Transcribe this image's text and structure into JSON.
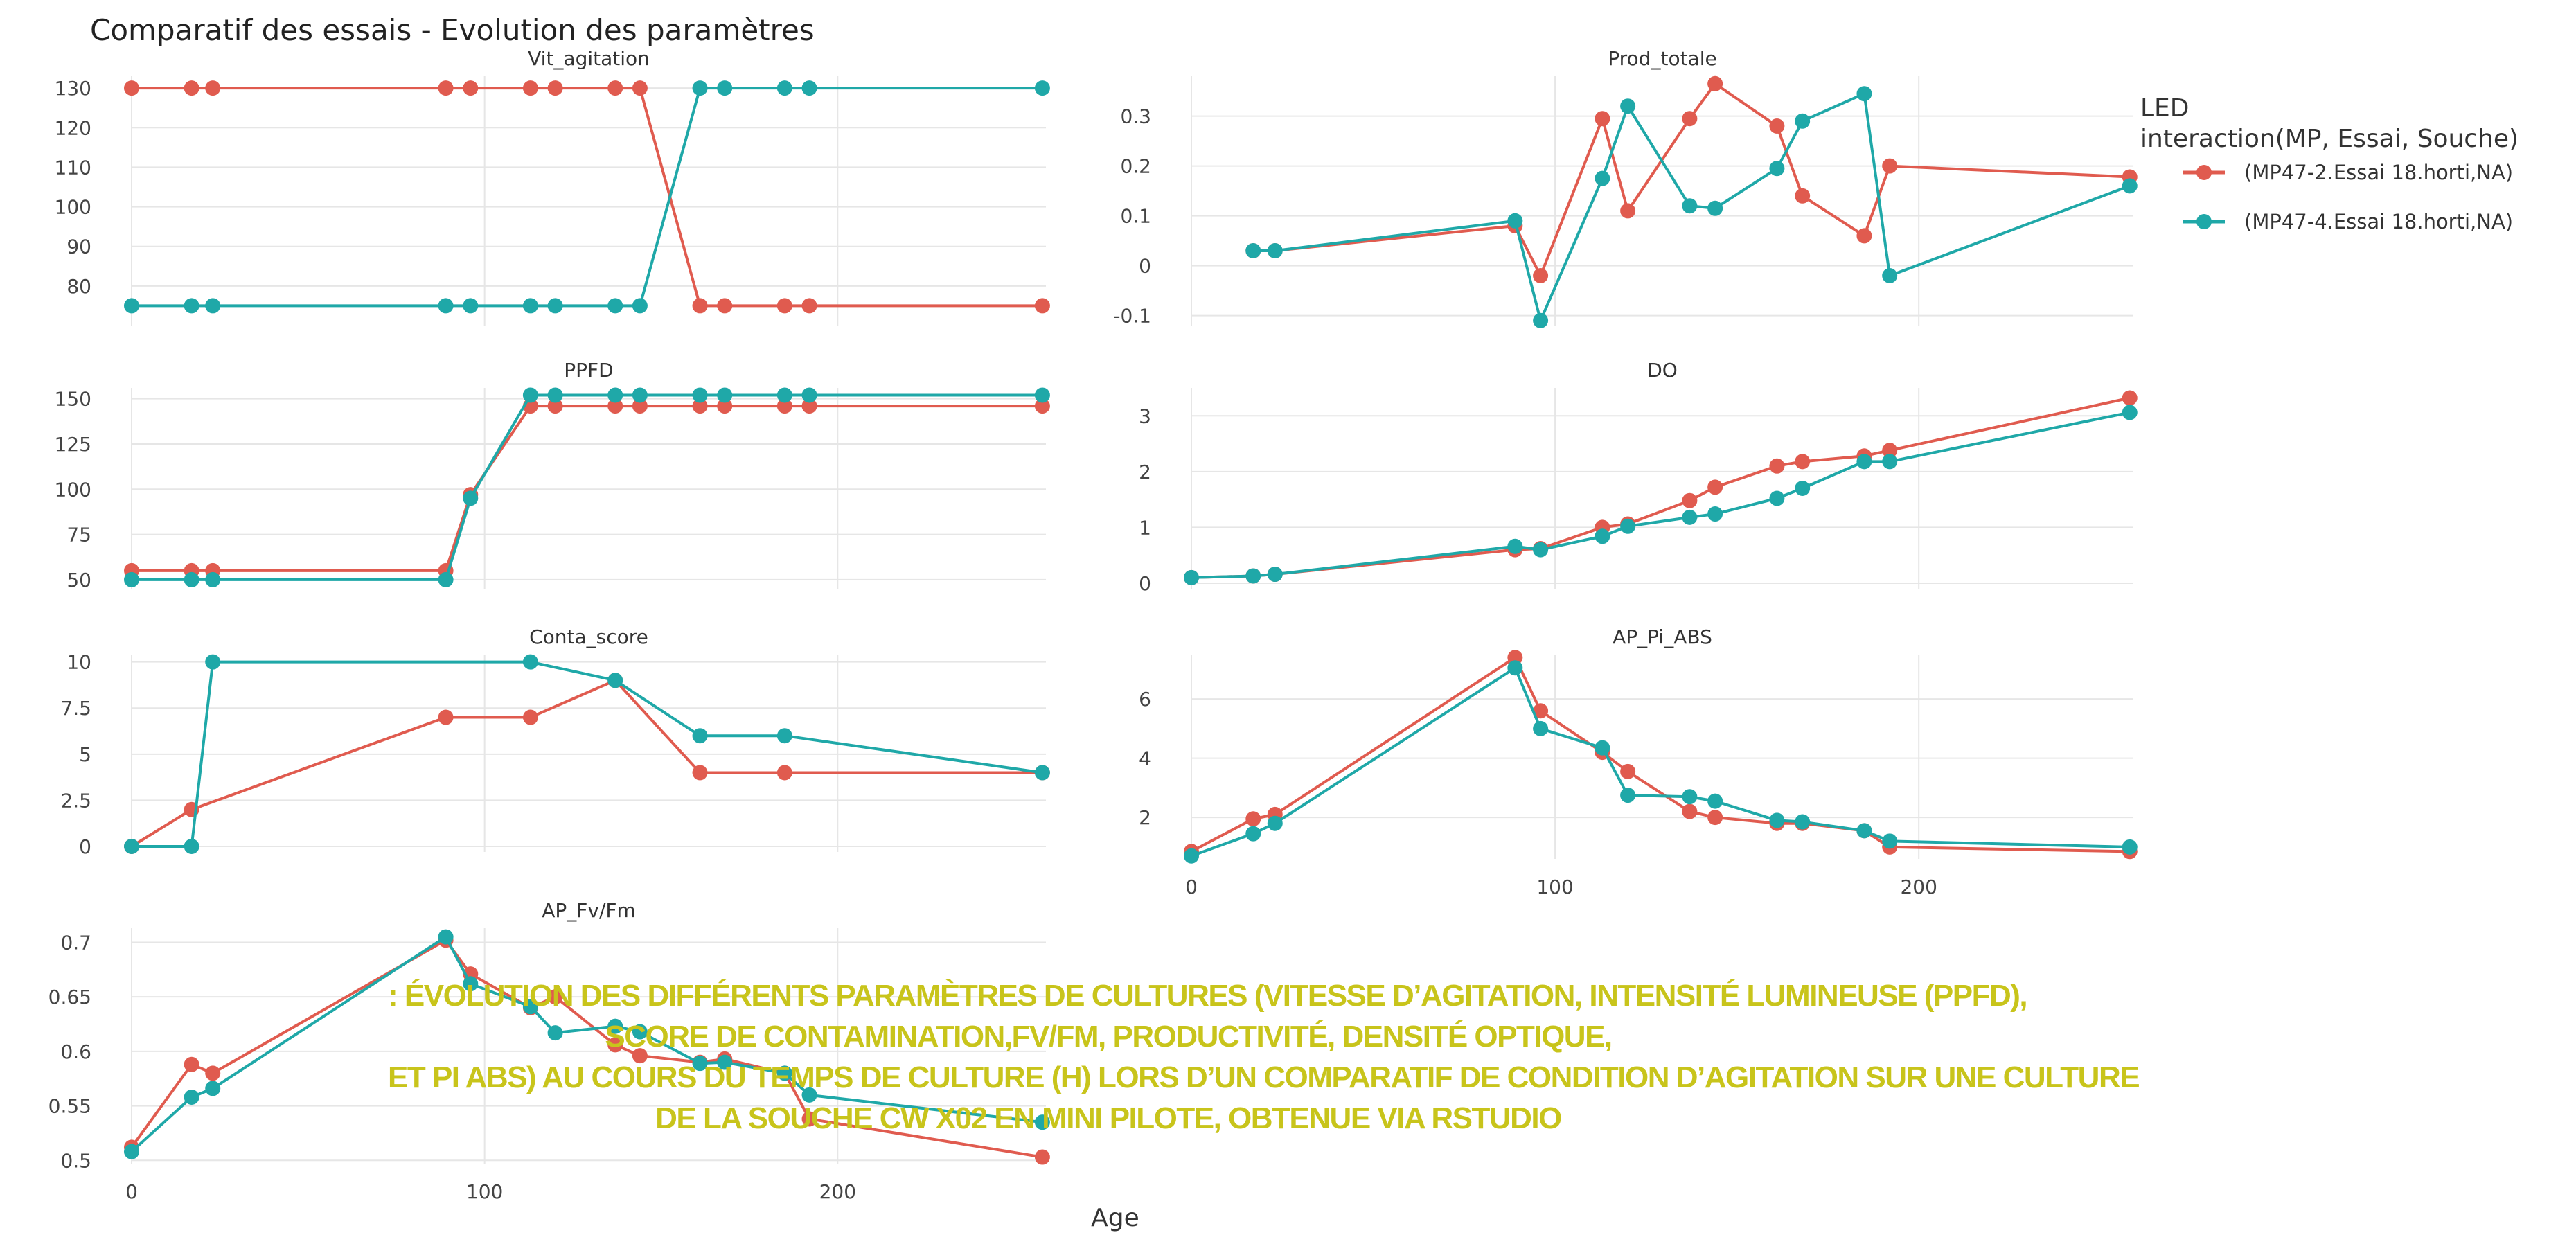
{
  "figure": {
    "title": "Comparatif des essais - Evolution des paramètres",
    "x_axis_label": "Age"
  },
  "legend": {
    "title_line1": "LED",
    "title_line2": "interaction(MP, Essai, Souche)",
    "items": [
      {
        "label": "(MP47-2.Essai 18.horti,NA)",
        "color": "#e05b4f"
      },
      {
        "label": "(MP47-4.Essai 18.horti,NA)",
        "color": "#1fa8a8"
      }
    ]
  },
  "caption": {
    "line1": ": ÉVOLUTION DES DIFFÉRENTS PARAMÈTRES DE CULTURES (VITESSE D’AGITATION, INTENSITÉ LUMINEUSE (PPFD),",
    "line2": "SCORE DE CONTAMINATION,FV/FM, PRODUCTIVITÉ, DENSITÉ OPTIQUE,",
    "line3": "ET PI ABS) AU COURS DU TEMPS DE CULTURE (H) LORS D’UN COMPARATIF DE CONDITION D’AGITATION SUR UNE CULTURE",
    "line4": "DE LA SOUCHE CW X02 EN MINI PILOTE, OBTENUE VIA RSTUDIO"
  },
  "chart_data": [
    {
      "type": "line",
      "title": "Vit_agitation",
      "xlabel": "Age",
      "ylabel": "",
      "xlim": [
        0,
        259
      ],
      "ylim": [
        70,
        133
      ],
      "yticks": [
        80,
        90,
        100,
        110,
        120,
        130
      ],
      "xticks": [],
      "series": [
        {
          "name": "(MP47-2.Essai 18.horti,NA)",
          "x": [
            0,
            17,
            23,
            89,
            96,
            113,
            120,
            137,
            144,
            161,
            168,
            185,
            192,
            258
          ],
          "y": [
            130,
            130,
            130,
            130,
            130,
            130,
            130,
            130,
            130,
            75,
            75,
            75,
            75,
            75
          ]
        },
        {
          "name": "(MP47-4.Essai 18.horti,NA)",
          "x": [
            0,
            17,
            23,
            89,
            96,
            113,
            120,
            137,
            144,
            161,
            168,
            185,
            192,
            258
          ],
          "y": [
            75,
            75,
            75,
            75,
            75,
            75,
            75,
            75,
            75,
            130,
            130,
            130,
            130,
            130
          ]
        }
      ]
    },
    {
      "type": "line",
      "title": "Prod_totale",
      "xlabel": "Age",
      "ylabel": "",
      "xlim": [
        0,
        259
      ],
      "ylim": [
        -0.12,
        0.38
      ],
      "yticks": [
        -0.1,
        0.0,
        0.1,
        0.2,
        0.3
      ],
      "xticks": [],
      "series": [
        {
          "name": "(MP47-2.Essai 18.horti,NA)",
          "x": [
            17,
            23,
            89,
            96,
            113,
            120,
            137,
            144,
            161,
            168,
            185,
            192,
            258
          ],
          "y": [
            0.03,
            0.03,
            0.08,
            -0.02,
            0.295,
            0.11,
            0.295,
            0.365,
            0.28,
            0.14,
            0.06,
            0.2,
            0.178
          ]
        },
        {
          "name": "(MP47-4.Essai 18.horti,NA)",
          "x": [
            17,
            23,
            89,
            96,
            113,
            120,
            137,
            144,
            161,
            168,
            185,
            192,
            258
          ],
          "y": [
            0.03,
            0.03,
            0.09,
            -0.11,
            0.175,
            0.32,
            0.12,
            0.115,
            0.195,
            0.29,
            0.345,
            -0.02,
            0.16
          ]
        }
      ]
    },
    {
      "type": "line",
      "title": "PPFD",
      "xlabel": "Age",
      "ylabel": "",
      "xlim": [
        0,
        259
      ],
      "ylim": [
        45,
        156
      ],
      "yticks": [
        50,
        75,
        100,
        125,
        150
      ],
      "xticks": [],
      "series": [
        {
          "name": "(MP47-2.Essai 18.horti,NA)",
          "x": [
            0,
            17,
            23,
            89,
            96,
            113,
            120,
            137,
            144,
            161,
            168,
            185,
            192,
            258
          ],
          "y": [
            55,
            55,
            55,
            55,
            97,
            146,
            146,
            146,
            146,
            146,
            146,
            146,
            146,
            146
          ]
        },
        {
          "name": "(MP47-4.Essai 18.horti,NA)",
          "x": [
            0,
            17,
            23,
            89,
            96,
            113,
            120,
            137,
            144,
            161,
            168,
            185,
            192,
            258
          ],
          "y": [
            50,
            50,
            50,
            50,
            95,
            152,
            152,
            152,
            152,
            152,
            152,
            152,
            152,
            152
          ]
        }
      ]
    },
    {
      "type": "line",
      "title": "DO",
      "xlabel": "Age",
      "ylabel": "",
      "xlim": [
        0,
        259
      ],
      "ylim": [
        -0.1,
        3.5
      ],
      "yticks": [
        0,
        1,
        2,
        3
      ],
      "xticks": [],
      "series": [
        {
          "name": "(MP47-2.Essai 18.horti,NA)",
          "x": [
            0,
            17,
            23,
            89,
            96,
            113,
            120,
            137,
            144,
            161,
            168,
            185,
            192,
            258
          ],
          "y": [
            0.1,
            0.13,
            0.16,
            0.6,
            0.62,
            1.0,
            1.06,
            1.48,
            1.72,
            2.1,
            2.18,
            2.28,
            2.38,
            3.32
          ]
        },
        {
          "name": "(MP47-4.Essai 18.horti,NA)",
          "x": [
            0,
            17,
            23,
            89,
            96,
            113,
            120,
            137,
            144,
            161,
            168,
            185,
            192,
            258
          ],
          "y": [
            0.1,
            0.13,
            0.16,
            0.66,
            0.6,
            0.84,
            1.02,
            1.18,
            1.24,
            1.52,
            1.7,
            2.18,
            2.18,
            3.06
          ]
        }
      ]
    },
    {
      "type": "line",
      "title": "Conta_score",
      "xlabel": "Age",
      "ylabel": "",
      "xlim": [
        0,
        259
      ],
      "ylim": [
        -0.3,
        10.4
      ],
      "yticks": [
        0.0,
        2.5,
        5.0,
        7.5,
        10.0
      ],
      "xticks": [],
      "series": [
        {
          "name": "(MP47-2.Essai 18.horti,NA)",
          "x": [
            0,
            17,
            89,
            113,
            137,
            161,
            185,
            258
          ],
          "y": [
            0,
            2,
            7,
            7,
            9,
            4,
            4,
            4
          ]
        },
        {
          "name": "(MP47-4.Essai 18.horti,NA)",
          "x": [
            0,
            17,
            23,
            113,
            137,
            161,
            185,
            258
          ],
          "y": [
            0,
            0,
            10,
            10,
            9,
            6,
            6,
            4
          ]
        }
      ]
    },
    {
      "type": "line",
      "title": "AP_Pi_ABS",
      "xlabel": "Age",
      "ylabel": "",
      "xlim": [
        0,
        259
      ],
      "ylim": [
        0.6,
        7.5
      ],
      "yticks": [
        2,
        4,
        6
      ],
      "xticks": [
        0,
        100,
        200
      ],
      "series": [
        {
          "name": "(MP47-2.Essai 18.horti,NA)",
          "x": [
            0,
            17,
            23,
            89,
            96,
            113,
            120,
            137,
            144,
            161,
            168,
            185,
            192,
            258
          ],
          "y": [
            0.85,
            1.95,
            2.1,
            7.4,
            5.6,
            4.2,
            3.55,
            2.2,
            2.0,
            1.8,
            1.8,
            1.55,
            1.0,
            0.85
          ]
        },
        {
          "name": "(MP47-4.Essai 18.horti,NA)",
          "x": [
            0,
            17,
            23,
            89,
            96,
            113,
            120,
            137,
            144,
            161,
            168,
            185,
            192,
            258
          ],
          "y": [
            0.7,
            1.45,
            1.8,
            7.05,
            5.0,
            4.35,
            2.75,
            2.7,
            2.55,
            1.9,
            1.85,
            1.55,
            1.2,
            1.0
          ]
        }
      ]
    },
    {
      "type": "line",
      "title": "AP_Fv/Fm",
      "xlabel": "Age",
      "ylabel": "",
      "xlim": [
        0,
        259
      ],
      "ylim": [
        0.497,
        0.713
      ],
      "yticks": [
        0.5,
        0.55,
        0.6,
        0.65,
        0.7
      ],
      "xticks": [
        0,
        100,
        200
      ],
      "series": [
        {
          "name": "(MP47-2.Essai 18.horti,NA)",
          "x": [
            0,
            17,
            23,
            89,
            96,
            113,
            120,
            137,
            144,
            161,
            168,
            185,
            192,
            258
          ],
          "y": [
            0.512,
            0.588,
            0.58,
            0.702,
            0.671,
            0.64,
            0.65,
            0.606,
            0.596,
            0.59,
            0.593,
            0.58,
            0.538,
            0.503
          ]
        },
        {
          "name": "(MP47-4.Essai 18.horti,NA)",
          "x": [
            0,
            17,
            23,
            89,
            96,
            113,
            120,
            137,
            144,
            161,
            168,
            185,
            192,
            258
          ],
          "y": [
            0.508,
            0.558,
            0.566,
            0.705,
            0.662,
            0.641,
            0.617,
            0.623,
            0.618,
            0.589,
            0.59,
            0.58,
            0.56,
            0.535
          ]
        }
      ]
    }
  ]
}
